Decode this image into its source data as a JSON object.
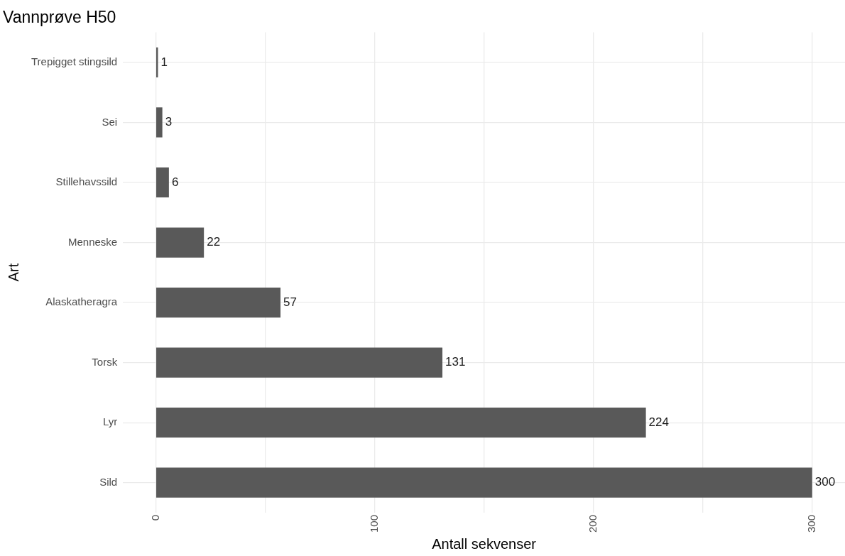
{
  "chart_data": {
    "type": "bar",
    "orientation": "horizontal",
    "title": "Vannprøve H50",
    "xlabel": "Antall sekvenser",
    "ylabel": "Art",
    "categories": [
      "Trepigget stingsild",
      "Sei",
      "Stillehavssild",
      "Menneske",
      "Alaskatheragra",
      "Torsk",
      "Lyr",
      "Sild"
    ],
    "values": [
      1,
      3,
      6,
      22,
      57,
      131,
      224,
      300
    ],
    "color": "#595959",
    "xlim": [
      -15,
      315
    ],
    "xticks": [
      0,
      {
        "value": 50,
        "label": null
      },
      100,
      {
        "value": 150,
        "label": null
      },
      200,
      {
        "value": 250,
        "label": null
      },
      300
    ],
    "grid": true,
    "data_labels": true
  }
}
